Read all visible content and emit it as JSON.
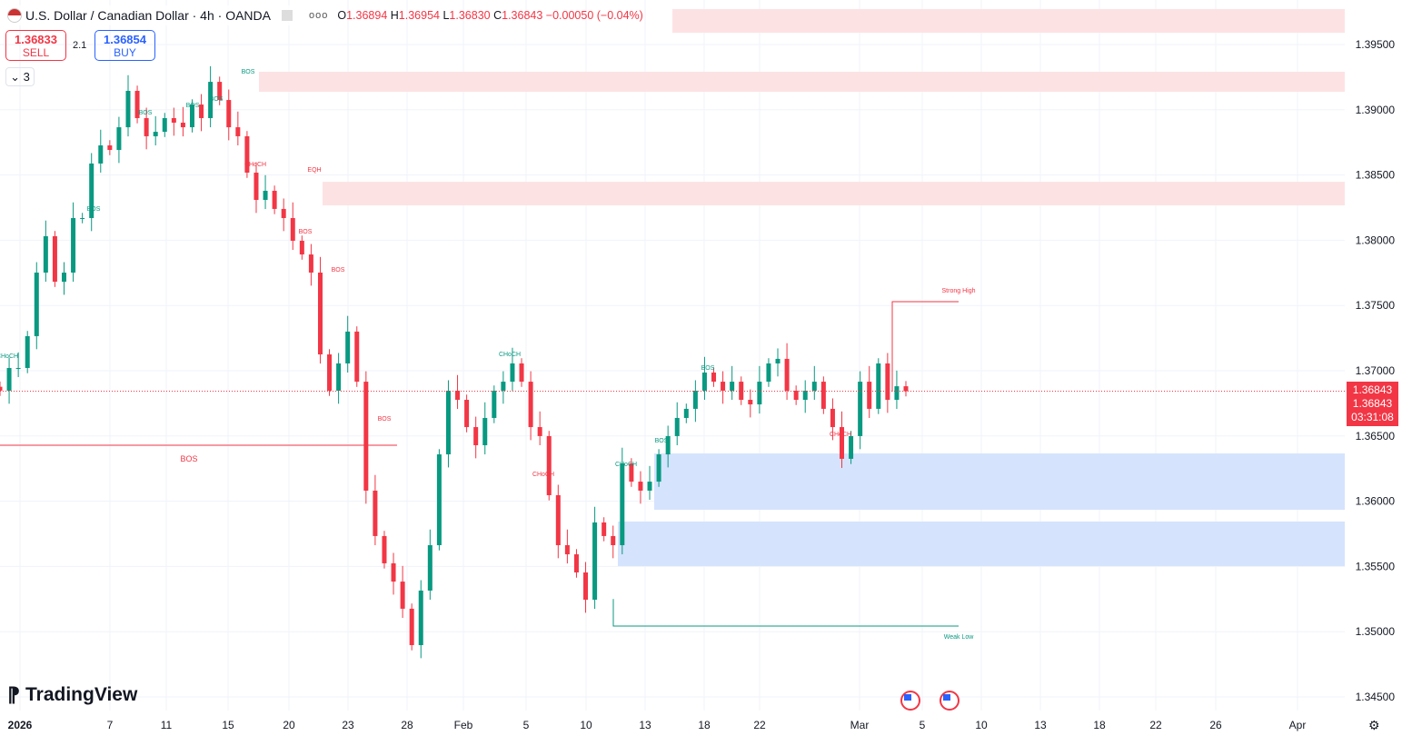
{
  "header": {
    "symbol": "U.S. Dollar / Canadian Dollar · 4h · OANDA",
    "more_icon": "ellipsis-icon",
    "ohlc": {
      "o_label": "O",
      "o": "1.36894",
      "h_label": "H",
      "h": "1.36954",
      "l_label": "L",
      "l": "1.36830",
      "c_label": "C",
      "c": "1.36843",
      "change": "−0.00050 (−0.04%)"
    }
  },
  "trade": {
    "sell_price": "1.36833",
    "sell_label": "SELL",
    "spread": "2.1",
    "buy_price": "1.36854",
    "buy_label": "BUY"
  },
  "indicators": {
    "count": "3"
  },
  "price_tags": {
    "last": "1.36843",
    "bid": "1.36843",
    "countdown": "03:31:08"
  },
  "brand": "TradingView",
  "colors": {
    "up": "#089981",
    "down": "#f23645",
    "supply": "#fde2e4",
    "demand": "#d5e3fd",
    "grid": "#f0f3fa"
  },
  "chart_data": {
    "type": "candlestick",
    "yticks": [
      "1.39500",
      "1.39000",
      "1.38500",
      "1.38000",
      "1.37500",
      "1.37000",
      "1.36500",
      "1.36000",
      "1.35500",
      "1.35000",
      "1.34500"
    ],
    "ylim": [
      1.3445,
      1.398
    ],
    "xticks": [
      "2026",
      "7",
      "11",
      "15",
      "20",
      "23",
      "28",
      "Feb",
      "5",
      "10",
      "13",
      "18",
      "22",
      "Mar",
      "5",
      "10",
      "13",
      "18",
      "22",
      "26",
      "Apr"
    ],
    "close": [
      1.36847,
      1.37021,
      1.37021,
      1.37265,
      1.37752,
      1.38031,
      1.37682,
      1.37752,
      1.3817,
      1.3817,
      1.38588,
      1.38727,
      1.38692,
      1.38866,
      1.39145,
      1.38936,
      1.38797,
      1.38831,
      1.38936,
      1.38901,
      1.38866,
      1.3904,
      1.38936,
      1.39214,
      1.39075,
      1.38866,
      1.38797,
      1.38518,
      1.38309,
      1.38379,
      1.3824,
      1.3817,
      1.37996,
      1.37891,
      1.37752,
      1.37125,
      1.36847,
      1.37056,
      1.373,
      1.36916,
      1.36081,
      1.35733,
      1.35524,
      1.35384,
      1.35176,
      1.34897,
      1.35315,
      1.35663,
      1.36359,
      1.36847,
      1.36777,
      1.36568,
      1.36429,
      1.36638,
      1.36847,
      1.36916,
      1.37056,
      1.36916,
      1.36568,
      1.36499,
      1.36046,
      1.35663,
      1.35593,
      1.35454,
      1.35245,
      1.35837,
      1.35733,
      1.35663,
      1.3629,
      1.3615,
      1.36081,
      1.3615,
      1.36359,
      1.36499,
      1.36638,
      1.36708,
      1.36847,
      1.36986,
      1.36916,
      1.36847,
      1.36916,
      1.36777,
      1.36742,
      1.36916,
      1.37056,
      1.37091,
      1.36847,
      1.36777,
      1.36847,
      1.36916,
      1.36708,
      1.36568,
      1.36325,
      1.36499,
      1.36916,
      1.36708,
      1.37056,
      1.36777,
      1.36881,
      1.36843
    ],
    "zones": [
      {
        "kind": "supply",
        "top": 1.39772,
        "bottom": 1.3959
      },
      {
        "kind": "supply",
        "top": 1.39291,
        "bottom": 1.39138
      },
      {
        "kind": "supply",
        "top": 1.38448,
        "bottom": 1.38267
      },
      {
        "kind": "demand",
        "top": 1.36366,
        "bottom": 1.35934
      },
      {
        "kind": "demand",
        "top": 1.35844,
        "bottom": 1.35503
      }
    ],
    "levels": [
      {
        "label": "Strong High",
        "price": 1.37529
      },
      {
        "label": "Weak Low",
        "price": 1.35043
      },
      {
        "label": "BOS",
        "price": 1.36429
      }
    ],
    "structure_labels": [
      {
        "text": "CHoCH",
        "color": "up"
      },
      {
        "text": "BOS",
        "color": "up"
      },
      {
        "text": "BOS",
        "color": "up"
      },
      {
        "text": "BOS",
        "color": "up"
      },
      {
        "text": "BOS",
        "color": "up"
      },
      {
        "text": "BOS",
        "color": "up"
      },
      {
        "text": "CHoCH",
        "color": "down"
      },
      {
        "text": "EQH",
        "color": "down"
      },
      {
        "text": "BOS",
        "color": "down"
      },
      {
        "text": "BOS",
        "color": "down"
      },
      {
        "text": "BOS",
        "color": "down"
      },
      {
        "text": "CHoCH",
        "color": "up"
      },
      {
        "text": "CHoCH",
        "color": "down"
      },
      {
        "text": "CHoCH",
        "color": "up"
      },
      {
        "text": "BOS",
        "color": "up"
      },
      {
        "text": "BOS",
        "color": "up"
      },
      {
        "text": "CHoCH",
        "color": "down"
      }
    ]
  }
}
